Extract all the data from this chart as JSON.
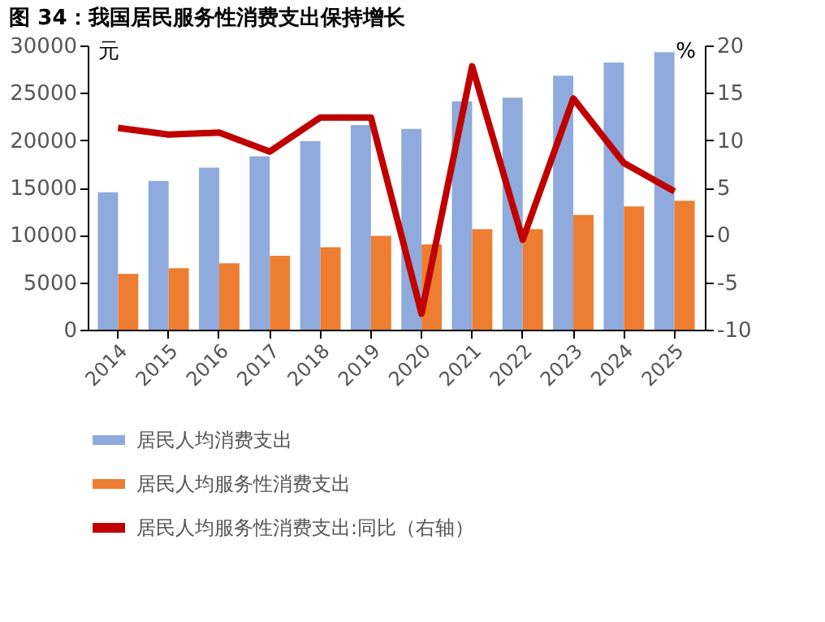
{
  "chart_data": {
    "type": "bar",
    "title": "图 34：我国居民服务性消费支出保持增长",
    "ylabel": "元",
    "y2label": "%",
    "categories": [
      "2014",
      "2015",
      "2016",
      "2017",
      "2018",
      "2019",
      "2020",
      "2021",
      "2022",
      "2023",
      "2024",
      "2025"
    ],
    "series": [
      {
        "name": "居民人均消费支出",
        "color": "#8faadc",
        "values": [
          14500,
          15700,
          17100,
          18300,
          19900,
          21600,
          21200,
          24100,
          24500,
          26800,
          28200,
          29300
        ]
      },
      {
        "name": "居民人均服务性消费支出",
        "color": "#ed7d31",
        "values": [
          5900,
          6500,
          7000,
          7800,
          8700,
          9900,
          9000,
          10600,
          10600,
          12100,
          13000,
          13600
        ]
      },
      {
        "name": "居民人均服务性消费支出:同比（右轴）",
        "type": "line",
        "axis": "y2",
        "color": "#c00000",
        "values": [
          11.3,
          10.6,
          10.8,
          8.8,
          12.4,
          12.4,
          -8.3,
          17.8,
          -0.5,
          14.4,
          7.6,
          4.6
        ]
      }
    ],
    "ylim": [
      0,
      30000
    ],
    "yticks": [
      0,
      5000,
      10000,
      15000,
      20000,
      25000,
      30000
    ],
    "y2lim": [
      -10,
      20
    ],
    "y2ticks": [
      -10,
      -5,
      0,
      5,
      10,
      15,
      20
    ],
    "legend": "bottom"
  }
}
